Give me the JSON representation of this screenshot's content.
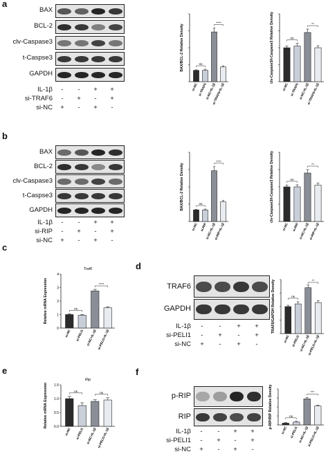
{
  "panels": {
    "a": {
      "letter": "a",
      "blots": [
        "BAX",
        "BCL-2",
        "clv-Caspase3",
        "t-Caspse3",
        "GAPDH"
      ],
      "treatments": [
        {
          "label": "IL-1β",
          "signs": [
            "-",
            "-",
            "+",
            "+"
          ]
        },
        {
          "label": "si-TRAF6",
          "signs": [
            "-",
            "+",
            "-",
            "+"
          ]
        },
        {
          "label": "si-NC",
          "signs": [
            "+",
            "-",
            "+",
            "-"
          ]
        }
      ]
    },
    "b": {
      "letter": "b",
      "blots": [
        "BAX",
        "BCL-2",
        "clv-Caspase3",
        "t-Caspse3",
        "GAPDH"
      ],
      "treatments": [
        {
          "label": "IL-1β",
          "signs": [
            "-",
            "-",
            "+",
            "+"
          ]
        },
        {
          "label": "si-RIP",
          "signs": [
            "-",
            "+",
            "-",
            "+"
          ]
        },
        {
          "label": "si-NC",
          "signs": [
            "+",
            "-",
            "+",
            "-"
          ]
        }
      ]
    },
    "c": {
      "letter": "c"
    },
    "d": {
      "letter": "d",
      "blots": [
        "TRAF6",
        "GAPDH"
      ],
      "treatments": [
        {
          "label": "IL-1β",
          "signs": [
            "-",
            "-",
            "+",
            "+"
          ]
        },
        {
          "label": "si-PELI1",
          "signs": [
            "-",
            "+",
            "-",
            "+"
          ]
        },
        {
          "label": "si-NC",
          "signs": [
            "+",
            "-",
            "+",
            "-"
          ]
        }
      ]
    },
    "e": {
      "letter": "e"
    },
    "f": {
      "letter": "f",
      "blots": [
        "p-RIP",
        "RIP"
      ],
      "treatments": [
        {
          "label": "IL-1β",
          "signs": [
            "-",
            "-",
            "+",
            "+"
          ]
        },
        {
          "label": "si-PELI1",
          "signs": [
            "-",
            "+",
            "-",
            "+"
          ]
        },
        {
          "label": "si-NC",
          "signs": [
            "+",
            "-",
            "+",
            "-"
          ]
        }
      ]
    }
  },
  "colors": {
    "bar_fill": [
      "#2b2b2b",
      "#c9cfd9",
      "#8a8e96",
      "#e8ebef"
    ],
    "axis": "#222222"
  },
  "chart_data": [
    {
      "id": "a1",
      "type": "bar",
      "title": "",
      "xlabel": "",
      "ylabel": "BAX/BCL-2 Relative Density",
      "categories": [
        "si-NC",
        "si-TRAF6",
        "si-NC+IL-1β",
        "si-TRAF6+IL-1β"
      ],
      "values": [
        1.0,
        1.0,
        4.4,
        1.3
      ],
      "errors": [
        0.05,
        0.1,
        0.35,
        0.1
      ],
      "ylim": [
        0,
        6
      ],
      "yticks": [],
      "sig": [
        {
          "from": 0,
          "to": 1,
          "label": "ns"
        },
        {
          "from": 2,
          "to": 3,
          "label": "****"
        }
      ]
    },
    {
      "id": "a2",
      "type": "bar",
      "title": "",
      "xlabel": "",
      "ylabel": "clv-Caspase3/t-Caspase3 Relative Density",
      "categories": [
        "si-NC",
        "si-TRAF6",
        "si-NC+IL-1β",
        "si-TRAF6+IL-1β"
      ],
      "values": [
        1.0,
        1.05,
        1.45,
        1.0
      ],
      "errors": [
        0.05,
        0.08,
        0.1,
        0.06
      ],
      "ylim": [
        0,
        2
      ],
      "yticks": [],
      "sig": [
        {
          "from": 0,
          "to": 1,
          "label": "ns"
        },
        {
          "from": 2,
          "to": 3,
          "label": "**"
        }
      ]
    },
    {
      "id": "b1",
      "type": "bar",
      "title": "",
      "xlabel": "",
      "ylabel": "BAX/BCL-2 Relative Density",
      "categories": [
        "si-NC",
        "si-RIP",
        "si-NC+IL-1β",
        "si-RIP+IL-1β"
      ],
      "values": [
        1.0,
        1.0,
        4.4,
        1.7
      ],
      "errors": [
        0.05,
        0.08,
        0.35,
        0.12
      ],
      "ylim": [
        0,
        6
      ],
      "yticks": [],
      "sig": [
        {
          "from": 0,
          "to": 1,
          "label": "ns"
        },
        {
          "from": 2,
          "to": 3,
          "label": "****"
        }
      ]
    },
    {
      "id": "b2",
      "type": "bar",
      "title": "",
      "xlabel": "",
      "ylabel": "clv-Caspase3/t-Caspase3 Relative Density",
      "categories": [
        "si-NC",
        "si-RIP",
        "si-NC+IL-1β",
        "si-RIP+IL-1β"
      ],
      "values": [
        1.0,
        1.0,
        1.4,
        1.05
      ],
      "errors": [
        0.05,
        0.06,
        0.1,
        0.06
      ],
      "ylim": [
        0,
        2
      ],
      "yticks": [],
      "sig": [
        {
          "from": 0,
          "to": 1,
          "label": "ns"
        },
        {
          "from": 2,
          "to": 3,
          "label": "**"
        }
      ]
    },
    {
      "id": "c1",
      "type": "bar",
      "title": "Traf6",
      "xlabel": "",
      "ylabel": "Relative mRNA Expression",
      "categories": [
        "si-NC",
        "si-PELI1",
        "si-NC+IL-1β",
        "si-PELI1+IL-1β"
      ],
      "values": [
        1.0,
        0.95,
        2.75,
        1.5
      ],
      "errors": [
        0.05,
        0.06,
        0.12,
        0.08
      ],
      "ylim": [
        0,
        4
      ],
      "yticks": [
        "0",
        "1",
        "2",
        "3",
        "4"
      ],
      "sig": [
        {
          "from": 0,
          "to": 1,
          "label": "ns"
        },
        {
          "from": 2,
          "to": 3,
          "label": "****"
        }
      ]
    },
    {
      "id": "d1",
      "type": "bar",
      "title": "",
      "xlabel": "",
      "ylabel": "TRAF6/GAPDH Relative Density",
      "categories": [
        "si-NC",
        "si-PELI1",
        "si-NC+IL-1β",
        "si-PELI1+IL-1β"
      ],
      "values": [
        1.0,
        1.1,
        1.7,
        1.15
      ],
      "errors": [
        0.05,
        0.08,
        0.1,
        0.07
      ],
      "ylim": [
        0,
        2
      ],
      "yticks": [],
      "sig": [
        {
          "from": 0,
          "to": 1,
          "label": "ns"
        },
        {
          "from": 2,
          "to": 3,
          "label": "**"
        }
      ]
    },
    {
      "id": "e1",
      "type": "bar",
      "title": "Rip",
      "xlabel": "",
      "ylabel": "Relative mRNA Expression",
      "categories": [
        "si-NC",
        "si-PELI1",
        "si-NC+IL-1β",
        "si-PELI1+IL-1β"
      ],
      "values": [
        1.0,
        0.75,
        0.9,
        0.95
      ],
      "errors": [
        0.08,
        0.1,
        0.06,
        0.08
      ],
      "ylim": [
        0,
        1.5
      ],
      "yticks": [
        "0.0",
        "0.5",
        "1.0",
        "1.5"
      ],
      "sig": [
        {
          "from": 0,
          "to": 1,
          "label": "ns"
        },
        {
          "from": 2,
          "to": 3,
          "label": "ns"
        }
      ]
    },
    {
      "id": "f1",
      "type": "bar",
      "title": "",
      "xlabel": "",
      "ylabel": "p-RIP/RIP Relative Density",
      "categories": [
        "si-NC",
        "si-PELI1",
        "si-NC+IL-1β",
        "si-PELI1+IL-1β"
      ],
      "values": [
        1.0,
        1.6,
        14.5,
        10.5
      ],
      "errors": [
        0.3,
        0.4,
        0.8,
        0.5
      ],
      "ylim": [
        0,
        20
      ],
      "yticks": [],
      "sig": [
        {
          "from": 0,
          "to": 1,
          "label": "ns"
        },
        {
          "from": 2,
          "to": 3,
          "label": "***"
        }
      ]
    }
  ]
}
